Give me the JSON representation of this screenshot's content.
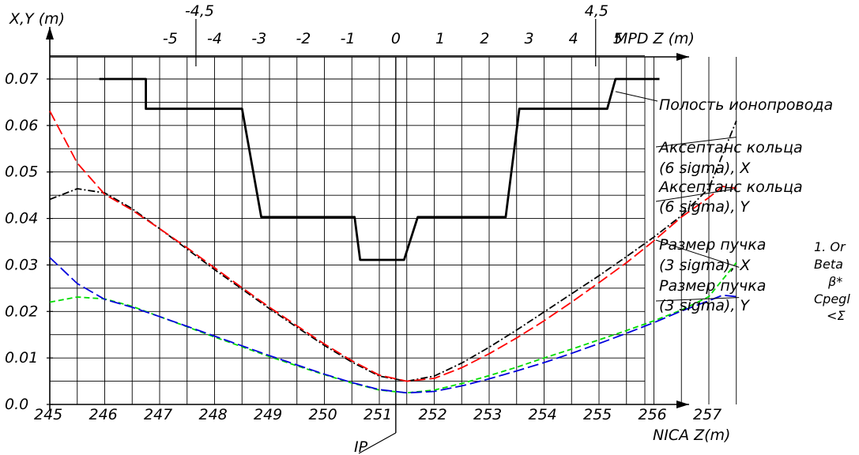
{
  "chart_data": {
    "type": "line",
    "y_axis_label": "X,Y (m)",
    "x_axis_label": "NICA Z(m)",
    "top_axis_label": "MPD Z (m)",
    "ylim": [
      0,
      0.08
    ],
    "xlim": [
      245,
      257.7
    ],
    "y_ticks": [
      "0.0",
      "0.01",
      "0.02",
      "0.03",
      "0.04",
      "0.05",
      "0.06",
      "0.07"
    ],
    "x_ticks": [
      "245",
      "246",
      "247",
      "248",
      "249",
      "250",
      "251",
      "252",
      "253",
      "254",
      "255",
      "256",
      "257"
    ],
    "top_ticks": [
      "-5",
      "-4",
      "-3",
      "-2",
      "-1",
      "0",
      "1",
      "2",
      "3",
      "4",
      "5"
    ],
    "top_extra_ticks": [
      "-4,5",
      "4,5"
    ],
    "ip_label": "IP",
    "grid": true,
    "series": [
      {
        "name": "Полость ионопровода",
        "color": "#000000",
        "style": "solid-thick",
        "x": [
          245.9,
          246.75,
          246.75,
          246.9,
          246.9,
          248.5,
          248.5,
          248.85,
          248.85,
          250.55,
          250.55,
          250.65,
          250.65,
          251.45,
          251.45,
          251.7,
          251.7,
          253.3,
          253.3,
          253.55,
          253.55,
          255.15,
          255.15,
          255.3,
          255.3,
          256.1
        ],
        "y": [
          0.07,
          0.07,
          0.0636,
          0.0636,
          0.0636,
          0.0636,
          0.0636,
          0.0403,
          0.0403,
          0.0403,
          0.0403,
          0.0311,
          0.0311,
          0.0311,
          0.0311,
          0.0403,
          0.0403,
          0.0403,
          0.0403,
          0.0636,
          0.0636,
          0.0636,
          0.0636,
          0.07,
          0.07,
          0.07
        ]
      },
      {
        "name": "Аксептанс кольца (6 sigma), X",
        "color": "#000000",
        "style": "dash-dot",
        "x": [
          245.0,
          245.5,
          246.0,
          246.5,
          247.0,
          247.5,
          248.0,
          248.5,
          249.0,
          249.5,
          250.0,
          250.5,
          251.0,
          251.5,
          252.0,
          252.5,
          253.0,
          253.5,
          254.0,
          254.5,
          255.0,
          255.5,
          256.0,
          256.5,
          257.0,
          257.5
        ],
        "y": [
          0.0441,
          0.0464,
          0.0455,
          0.0421,
          0.0378,
          0.0334,
          0.029,
          0.0248,
          0.0206,
          0.0166,
          0.0127,
          0.0091,
          0.0061,
          0.005,
          0.0061,
          0.0089,
          0.0123,
          0.016,
          0.0199,
          0.0238,
          0.0277,
          0.0318,
          0.036,
          0.0406,
          0.0465,
          0.061
        ]
      },
      {
        "name": "Аксептанс кольца (6 sigma), Y",
        "color": "#ff0000",
        "style": "long-dash",
        "x": [
          245.0,
          245.5,
          246.0,
          246.5,
          247.0,
          247.5,
          248.0,
          248.5,
          249.0,
          249.5,
          250.0,
          250.5,
          251.0,
          251.5,
          252.0,
          252.5,
          253.0,
          253.5,
          254.0,
          254.5,
          255.0,
          255.5,
          256.0,
          256.5,
          257.0,
          257.25,
          257.5
        ],
        "y": [
          0.0631,
          0.0519,
          0.0452,
          0.0418,
          0.0378,
          0.0337,
          0.0294,
          0.0251,
          0.0209,
          0.0169,
          0.013,
          0.0094,
          0.0063,
          0.005,
          0.0056,
          0.0079,
          0.0109,
          0.0143,
          0.018,
          0.022,
          0.0262,
          0.0305,
          0.0352,
          0.0403,
          0.0445,
          0.0469,
          0.0465
        ]
      },
      {
        "name": "Размер пучка (3 sigma), X",
        "color": "#00dd00",
        "style": "dashed",
        "x": [
          245.0,
          245.5,
          246.0,
          246.5,
          247.0,
          247.5,
          248.0,
          248.5,
          249.0,
          249.5,
          250.0,
          250.5,
          251.0,
          251.5,
          252.0,
          252.5,
          253.0,
          253.5,
          254.0,
          254.5,
          255.0,
          255.5,
          256.0,
          256.5,
          257.0,
          257.5
        ],
        "y": [
          0.022,
          0.0231,
          0.0227,
          0.0211,
          0.0189,
          0.0167,
          0.0145,
          0.0124,
          0.0103,
          0.0083,
          0.0064,
          0.0046,
          0.0031,
          0.0025,
          0.0031,
          0.0045,
          0.0062,
          0.008,
          0.01,
          0.0119,
          0.0139,
          0.0159,
          0.018,
          0.0203,
          0.0232,
          0.0305
        ]
      },
      {
        "name": "Размер пучка (3 sigma), Y",
        "color": "#0000dd",
        "style": "long-dash",
        "x": [
          245.0,
          245.5,
          246.0,
          246.5,
          247.0,
          247.5,
          248.0,
          248.5,
          249.0,
          249.5,
          250.0,
          250.5,
          251.0,
          251.5,
          252.0,
          252.5,
          253.0,
          253.5,
          254.0,
          254.5,
          255.0,
          255.5,
          256.0,
          256.5,
          257.0,
          257.25,
          257.5
        ],
        "y": [
          0.0316,
          0.026,
          0.0226,
          0.0209,
          0.0189,
          0.0168,
          0.0147,
          0.0126,
          0.0105,
          0.0085,
          0.0065,
          0.0047,
          0.0032,
          0.0025,
          0.0028,
          0.004,
          0.0055,
          0.0072,
          0.009,
          0.011,
          0.0131,
          0.0153,
          0.0176,
          0.0201,
          0.0223,
          0.0235,
          0.0232
        ]
      }
    ]
  },
  "labels": {
    "cavity": "Полость ионопровода",
    "acc_x_1": "Аксептанс кольца",
    "acc_x_2": "(6 sigma), X",
    "acc_y_1": "Аксептанс кольца",
    "acc_y_2": "(6 sigma), Y",
    "beam_x_1": "Размер пучка",
    "beam_x_2": "(3 sigma), X",
    "beam_y_1": "Размер пучка",
    "beam_y_2": "(3 sigma), Y"
  },
  "notes": [
    "1. Or",
    "Beta",
    "β*",
    "Cpegl",
    "<Σ"
  ]
}
